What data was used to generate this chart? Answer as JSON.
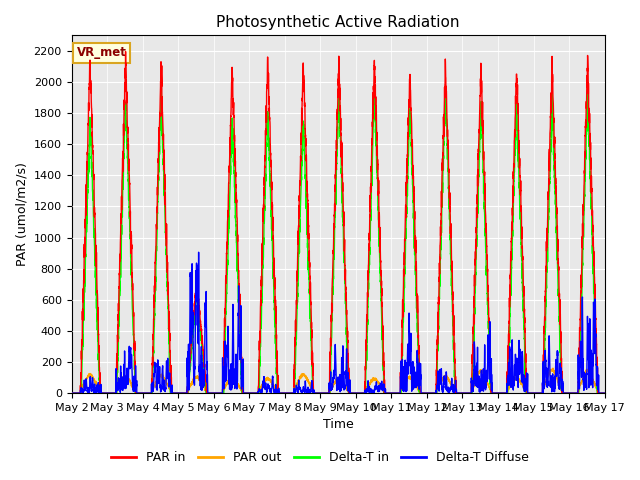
{
  "title": "Photosynthetic Active Radiation",
  "ylabel": "PAR (umol/m2/s)",
  "xlabel": "Time",
  "legend_label": "VR_met",
  "series_labels": [
    "PAR in",
    "PAR out",
    "Delta-T in",
    "Delta-T Diffuse"
  ],
  "colors": [
    "red",
    "#FFA500",
    "lime",
    "blue"
  ],
  "linewidths": [
    1.0,
    1.0,
    1.0,
    1.0
  ],
  "ylim": [
    0,
    2300
  ],
  "xtick_labels": [
    "May 2",
    "May 3",
    "May 4",
    "May 5",
    "May 6",
    "May 7",
    "May 8",
    "May 9",
    "May 10",
    "May 11",
    "May 12",
    "May 13",
    "May 14",
    "May 15",
    "May 16",
    "May 17"
  ],
  "n_days": 15,
  "points_per_day": 288,
  "background_color": "#e8e8e8",
  "title_fontsize": 11,
  "legend_fontsize": 9,
  "tick_fontsize": 8,
  "ylabel_fontsize": 9
}
